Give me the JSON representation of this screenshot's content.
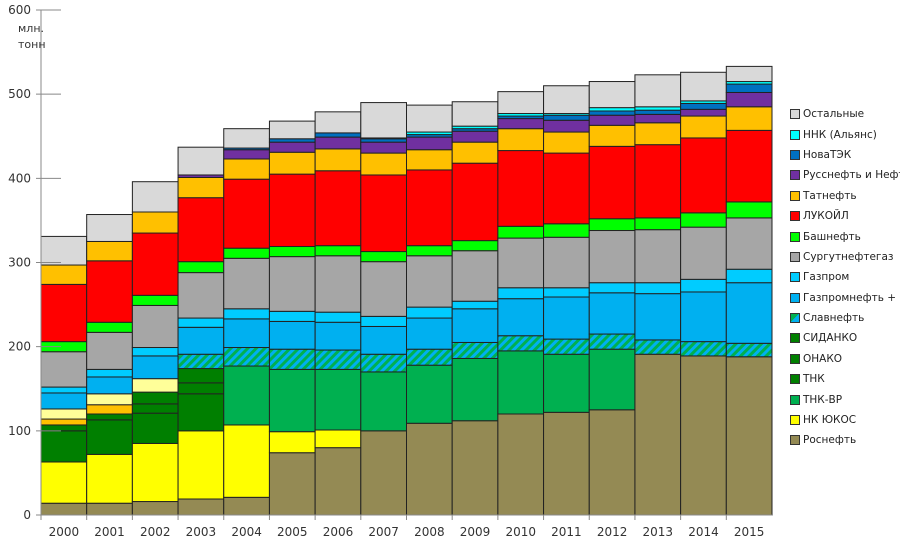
{
  "chart_data": {
    "type": "bar",
    "stacked": true,
    "title": "",
    "xlabel": "",
    "ylabel": "млн. тонн",
    "ylabel_lines": [
      "млн.",
      "тонн"
    ],
    "ylim": [
      0,
      600
    ],
    "yticks": [
      0,
      100,
      200,
      300,
      400,
      500,
      600
    ],
    "grid": false,
    "legend_position": "right",
    "categories": [
      "2000",
      "2001",
      "2002",
      "2003",
      "2004",
      "2005",
      "2006",
      "2007",
      "2008",
      "2009",
      "2010",
      "2011",
      "2012",
      "2013",
      "2014",
      "2015"
    ],
    "series": [
      {
        "name": "Роснефть",
        "color": "#948A54",
        "values": [
          14,
          14,
          16,
          19,
          21,
          74,
          80,
          100,
          109,
          112,
          120,
          122,
          125,
          191,
          189,
          188
        ]
      },
      {
        "name": "НК ЮКОС",
        "color": "#FFFF00",
        "values": [
          49,
          58,
          69,
          81,
          86,
          25,
          21,
          0,
          0,
          0,
          0,
          0,
          0,
          0,
          0,
          0
        ]
      },
      {
        "name": "ТНК-ВР",
        "color": "#00B050",
        "values": [
          0,
          0,
          0,
          0,
          70,
          74,
          72,
          70,
          69,
          74,
          75,
          69,
          72,
          0,
          0,
          0
        ]
      },
      {
        "name": "ТНК",
        "color": "#007F00",
        "values": [
          37,
          41,
          36,
          44,
          0,
          0,
          0,
          0,
          0,
          0,
          0,
          0,
          0,
          0,
          0,
          0
        ]
      },
      {
        "name": "ОНАКО",
        "color": "#007F00",
        "values": [
          7,
          7,
          11,
          13,
          0,
          0,
          0,
          0,
          0,
          0,
          0,
          0,
          0,
          0,
          0,
          0
        ]
      },
      {
        "name": "СИДАНКО",
        "color": "#007F00",
        "values": [
          0,
          0,
          14,
          17,
          0,
          0,
          0,
          0,
          0,
          0,
          0,
          0,
          0,
          0,
          0,
          0
        ]
      },
      {
        "name": "",
        "color": "#FFC000",
        "legend": false,
        "values": [
          7,
          11,
          0,
          0,
          0,
          0,
          0,
          0,
          0,
          0,
          0,
          0,
          0,
          0,
          0,
          0
        ]
      },
      {
        "name": "",
        "color": "#FFFF99",
        "legend": false,
        "values": [
          12,
          13,
          16,
          0,
          0,
          0,
          0,
          0,
          0,
          0,
          0,
          0,
          0,
          0,
          0,
          0
        ]
      },
      {
        "name": "Славнефть",
        "color": "#00B0F0",
        "hatch": true,
        "values": [
          0,
          0,
          0,
          17,
          22,
          24,
          23,
          21,
          19,
          19,
          18,
          18,
          18,
          17,
          17,
          16
        ]
      },
      {
        "name": "Газпромнефть + СП",
        "color": "#00B0F0",
        "values": [
          19,
          20,
          27,
          32,
          34,
          33,
          33,
          33,
          37,
          40,
          44,
          50,
          49,
          55,
          59,
          72
        ]
      },
      {
        "name": "Газпром",
        "color": "#00CCFF",
        "values": [
          7,
          9,
          10,
          11,
          12,
          12,
          12,
          12,
          13,
          9,
          13,
          11,
          12,
          13,
          15,
          16
        ]
      },
      {
        "name": "Сургутнефтегаз",
        "color": "#A6A6A6",
        "values": [
          42,
          44,
          50,
          54,
          60,
          65,
          67,
          65,
          61,
          60,
          59,
          60,
          62,
          63,
          62,
          61
        ]
      },
      {
        "name": "Башнефть",
        "color": "#00FF00",
        "values": [
          12,
          12,
          12,
          13,
          12,
          12,
          12,
          12,
          12,
          12,
          14,
          16,
          14,
          14,
          17,
          19
        ]
      },
      {
        "name": "ЛУКОЙЛ",
        "color": "#FF0000",
        "values": [
          68,
          73,
          74,
          76,
          82,
          86,
          89,
          91,
          90,
          92,
          90,
          84,
          86,
          87,
          89,
          85
        ]
      },
      {
        "name": "Татнефть",
        "color": "#FFC000",
        "values": [
          23,
          23,
          25,
          24,
          24,
          26,
          26,
          26,
          24,
          25,
          26,
          25,
          25,
          26,
          26,
          28
        ]
      },
      {
        "name": "Русснефть и Нефтиса",
        "color": "#7030A0",
        "values": [
          0,
          0,
          0,
          3,
          11,
          12,
          14,
          13,
          15,
          13,
          12,
          14,
          12,
          10,
          8,
          17
        ]
      },
      {
        "name": "НоваТЭК",
        "color": "#0070C0",
        "values": [
          0,
          0,
          0,
          0,
          2,
          4,
          5,
          4,
          3,
          3,
          3,
          6,
          5,
          5,
          7,
          10
        ]
      },
      {
        "name": "ННК (Альянс)",
        "color": "#00FFFF",
        "values": [
          0,
          0,
          0,
          0,
          0,
          0,
          0,
          1,
          3,
          3,
          3,
          2,
          4,
          4,
          3,
          3
        ]
      },
      {
        "name": "Остальные",
        "color": "#D9D9D9",
        "values": [
          34,
          32,
          36,
          33,
          23,
          21,
          25,
          42,
          32,
          29,
          26,
          33,
          31,
          38,
          34,
          18
        ]
      }
    ]
  }
}
